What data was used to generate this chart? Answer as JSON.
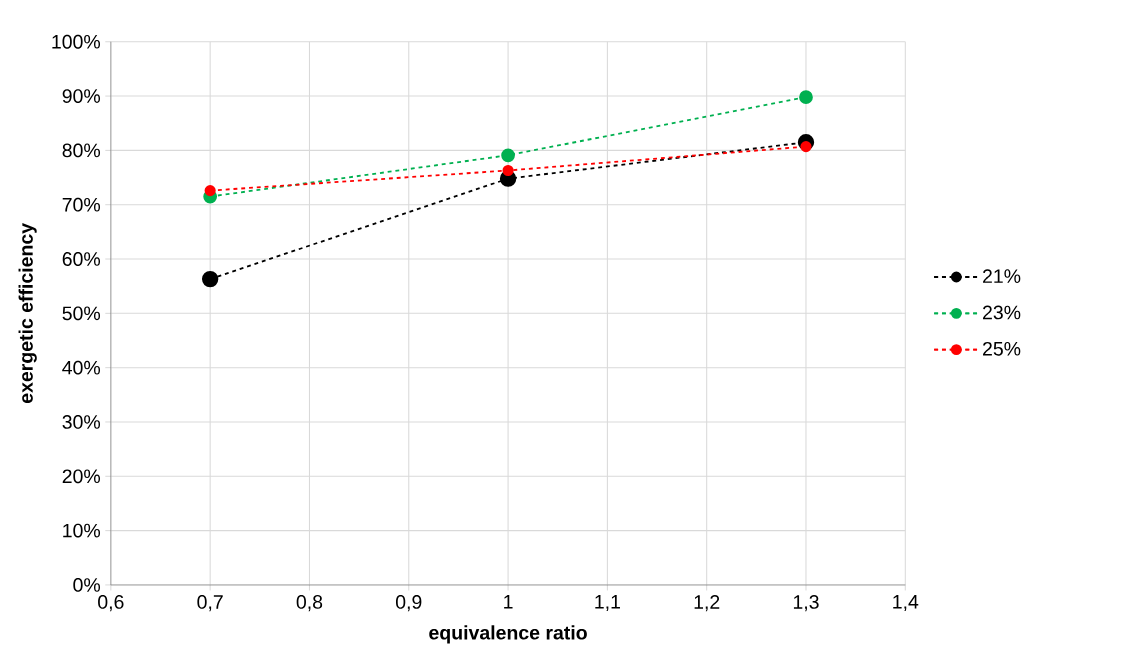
{
  "chart_data": {
    "type": "line",
    "xlabel": "equivalence ratio",
    "ylabel": "exergetic efficiency",
    "x": [
      0.7,
      1.0,
      1.3
    ],
    "series": [
      {
        "name": "21%",
        "color": "#000000",
        "values": [
          56.3,
          74.8,
          81.5
        ]
      },
      {
        "name": "23%",
        "color": "#00b050",
        "values": [
          71.5,
          79.1,
          89.8
        ]
      },
      {
        "name": "25%",
        "color": "#ff0000",
        "values": [
          72.6,
          76.3,
          80.7
        ]
      }
    ],
    "xlim": [
      0.6,
      1.4
    ],
    "xticks": [
      {
        "value": 0.6,
        "label": "0,6"
      },
      {
        "value": 0.7,
        "label": "0,7"
      },
      {
        "value": 0.8,
        "label": "0,8"
      },
      {
        "value": 0.9,
        "label": "0,9"
      },
      1,
      {
        "value": 1.1,
        "label": "1,1"
      },
      {
        "value": 1.2,
        "label": "1,2"
      },
      {
        "value": 1.3,
        "label": "1,3"
      },
      {
        "value": 1.4,
        "label": "1,4"
      }
    ],
    "ylim": [
      0,
      100
    ],
    "yticks": [
      {
        "value": 0,
        "label": "0%"
      },
      {
        "value": 10,
        "label": "10%"
      },
      {
        "value": 20,
        "label": "20%"
      },
      {
        "value": 30,
        "label": "30%"
      },
      {
        "value": 40,
        "label": "40%"
      },
      {
        "value": 50,
        "label": "50%"
      },
      {
        "value": 60,
        "label": "60%"
      },
      {
        "value": 70,
        "label": "70%"
      },
      {
        "value": 80,
        "label": "80%"
      },
      {
        "value": 90,
        "label": "90%"
      },
      {
        "value": 100,
        "label": "100%"
      }
    ],
    "grid": true,
    "legend": "right",
    "marker": "circle",
    "line_style": "dashed"
  }
}
